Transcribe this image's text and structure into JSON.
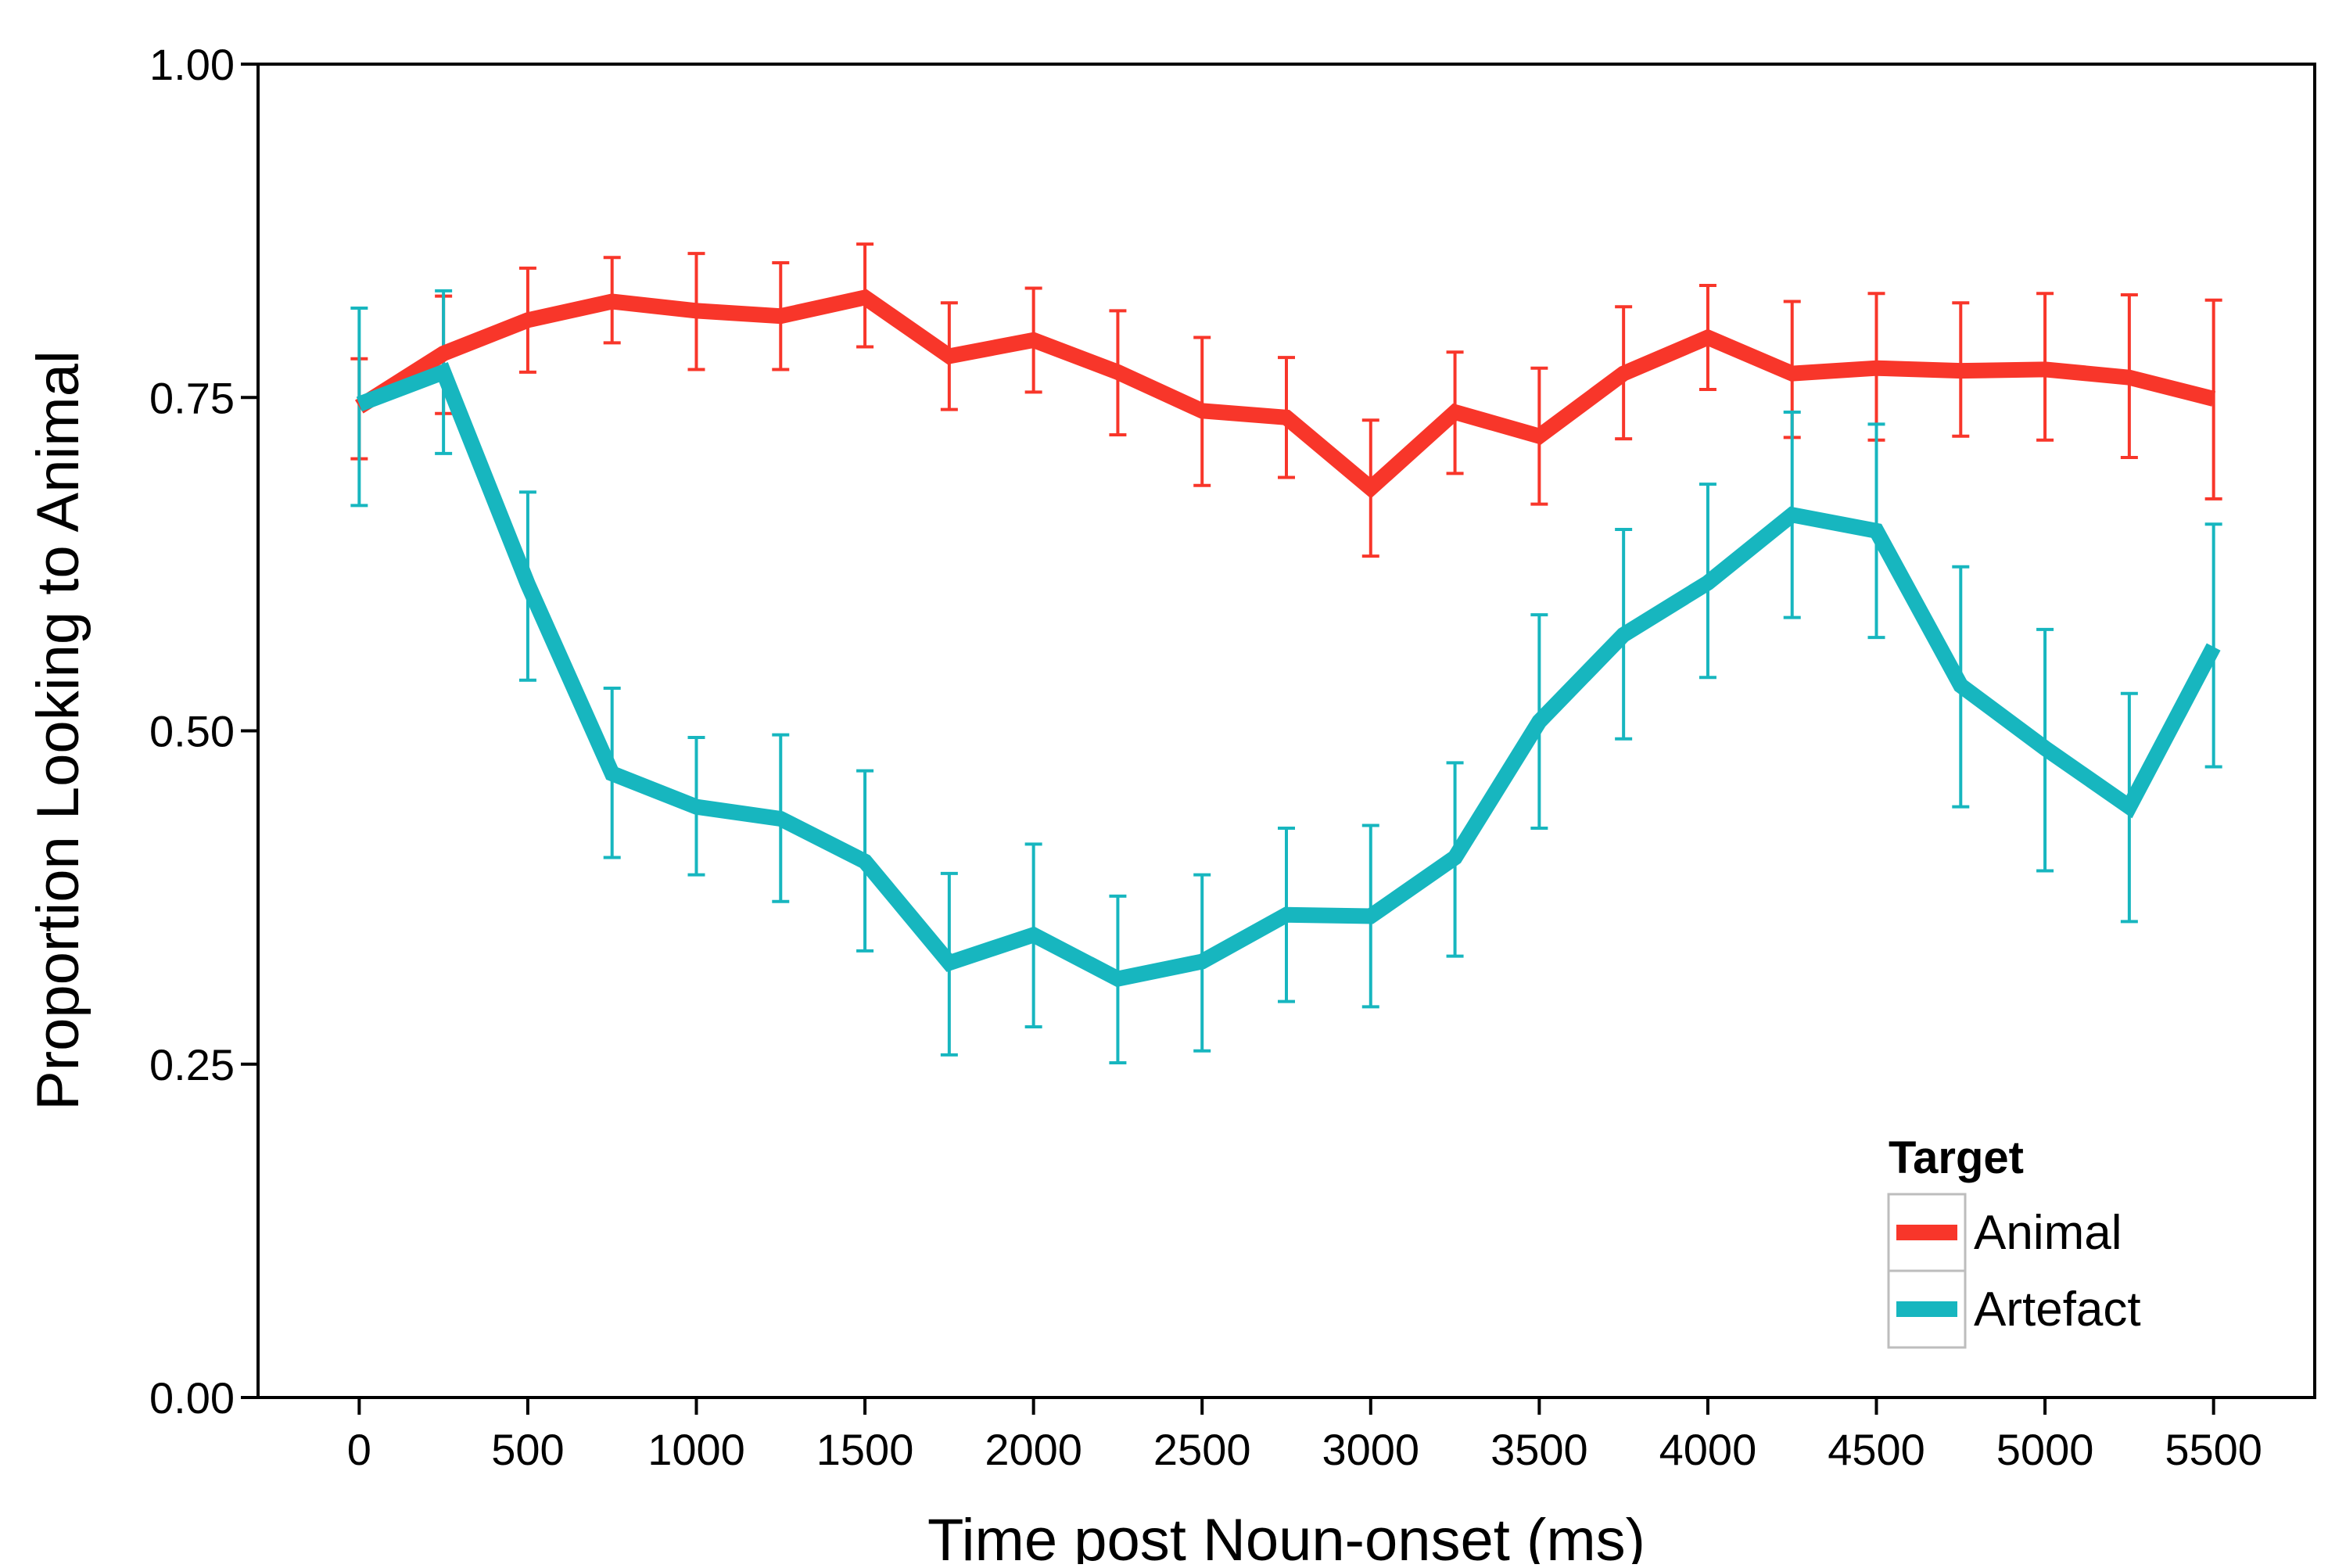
{
  "chart_data": {
    "type": "line",
    "title": "",
    "xlabel": "Time post Noun-onset (ms)",
    "ylabel": "Proportion Looking to Animal",
    "x": [
      0,
      250,
      500,
      750,
      1000,
      1250,
      1500,
      1750,
      2000,
      2250,
      2500,
      2750,
      3000,
      3250,
      3500,
      3750,
      4000,
      4250,
      4500,
      4750,
      5000,
      5250,
      5500
    ],
    "xticks": [
      0,
      500,
      1000,
      1500,
      2000,
      2500,
      3000,
      3500,
      4000,
      4500,
      5000,
      5500
    ],
    "xtick_labels": [
      "0",
      "500",
      "1000",
      "1500",
      "2000",
      "2500",
      "3000",
      "3500",
      "4000",
      "4500",
      "5000",
      "5500"
    ],
    "xlim": [
      -300,
      5800
    ],
    "yticks": [
      0,
      0.25,
      0.5,
      0.75,
      1
    ],
    "ytick_labels": [
      "0.00",
      "0.25",
      "0.50",
      "0.75",
      "1.00"
    ],
    "ylim": [
      0,
      1
    ],
    "grid": false,
    "legend": {
      "title": "Target",
      "position": "bottom-right"
    },
    "series": [
      {
        "name": "Animal",
        "color": "#F8362A",
        "values": [
          0.743,
          0.783,
          0.808,
          0.822,
          0.815,
          0.811,
          0.825,
          0.781,
          0.793,
          0.769,
          0.74,
          0.735,
          0.682,
          0.739,
          0.721,
          0.768,
          0.795,
          0.768,
          0.772,
          0.77,
          0.771,
          0.765,
          0.749
        ],
        "err_low": [
          0.704,
          0.738,
          0.769,
          0.791,
          0.771,
          0.771,
          0.788,
          0.741,
          0.754,
          0.722,
          0.684,
          0.69,
          0.631,
          0.693,
          0.67,
          0.719,
          0.756,
          0.72,
          0.718,
          0.721,
          0.718,
          0.705,
          0.674
        ],
        "err_high": [
          0.779,
          0.826,
          0.847,
          0.855,
          0.858,
          0.851,
          0.865,
          0.821,
          0.832,
          0.815,
          0.795,
          0.78,
          0.733,
          0.784,
          0.772,
          0.818,
          0.834,
          0.822,
          0.828,
          0.821,
          0.828,
          0.827,
          0.823
        ]
      },
      {
        "name": "Artefact",
        "color": "#17B6BF",
        "values": [
          0.745,
          0.769,
          0.61,
          0.468,
          0.443,
          0.434,
          0.402,
          0.326,
          0.347,
          0.314,
          0.327,
          0.362,
          0.361,
          0.405,
          0.507,
          0.572,
          0.611,
          0.662,
          0.65,
          0.534,
          0.487,
          0.443,
          0.563
        ],
        "err_low": [
          0.669,
          0.708,
          0.538,
          0.405,
          0.392,
          0.372,
          0.335,
          0.257,
          0.278,
          0.251,
          0.26,
          0.297,
          0.293,
          0.331,
          0.427,
          0.494,
          0.54,
          0.585,
          0.57,
          0.443,
          0.395,
          0.357,
          0.473
        ],
        "err_high": [
          0.817,
          0.83,
          0.679,
          0.532,
          0.495,
          0.497,
          0.47,
          0.393,
          0.415,
          0.376,
          0.392,
          0.427,
          0.429,
          0.476,
          0.587,
          0.651,
          0.685,
          0.739,
          0.73,
          0.623,
          0.576,
          0.528,
          0.655
        ]
      }
    ]
  }
}
